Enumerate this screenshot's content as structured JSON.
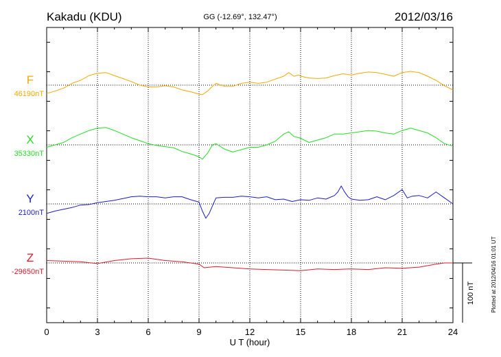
{
  "header": {
    "station": "Kakadu (KDU)",
    "coords": "GG (-12.69°, 132.47°)",
    "date": "2012/03/16"
  },
  "side_note": "Plotted at 2012/04/16 01:01  UT",
  "chart_data": {
    "type": "line",
    "xlabel": "U T (hour)",
    "xlim": [
      0,
      24
    ],
    "xticks": [
      "0",
      "3",
      "6",
      "9",
      "12",
      "15",
      "18",
      "21",
      "24"
    ],
    "scale_bar": {
      "label": "100 nT",
      "value_nT": 100
    },
    "series": [
      {
        "name": "F",
        "baseline_label": "46190nT",
        "baseline_nT": 46190,
        "color": "#f5a800",
        "x": [
          0,
          0.5,
          1,
          1.5,
          2,
          2.5,
          3,
          3.5,
          4,
          4.5,
          5,
          5.5,
          6,
          6.5,
          7,
          7.5,
          8,
          8.5,
          9,
          9.2,
          9.5,
          9.8,
          10,
          10.5,
          11,
          11.5,
          12,
          12.5,
          13,
          13.5,
          14,
          14.3,
          14.6,
          14.9,
          15,
          15.5,
          16,
          16.5,
          17,
          17.5,
          18,
          18.5,
          19,
          19.5,
          20,
          20.5,
          21,
          21.5,
          22,
          22.5,
          23,
          23.5,
          24
        ],
        "y": [
          -14,
          -10,
          -5,
          3,
          8,
          16,
          20,
          21,
          16,
          11,
          6,
          0,
          -3,
          -3,
          -1,
          -3,
          -8,
          -11,
          -15,
          -16,
          -10,
          -2,
          3,
          -2,
          -2,
          3,
          5,
          3,
          5,
          10,
          15,
          21,
          15,
          17,
          15,
          12,
          11,
          12,
          16,
          19,
          17,
          20,
          22,
          21,
          18,
          15,
          21,
          23,
          21,
          15,
          8,
          -1,
          -8
        ]
      },
      {
        "name": "X",
        "baseline_label": "35330nT",
        "baseline_nT": 35330,
        "color": "#22dd22",
        "x": [
          0,
          0.5,
          1,
          1.5,
          2,
          2.5,
          3,
          3.5,
          4,
          4.5,
          5,
          5.5,
          6,
          6.5,
          7,
          7.5,
          8,
          8.5,
          9,
          9.2,
          9.5,
          9.8,
          10,
          10.5,
          11,
          11.5,
          12,
          12.5,
          13,
          13.5,
          14,
          14.3,
          14.6,
          14.9,
          15,
          15.5,
          16,
          16.5,
          17,
          17.5,
          18,
          18.5,
          19,
          19.5,
          20,
          20.5,
          21,
          21.5,
          22,
          22.5,
          23,
          23.5,
          24
        ],
        "y": [
          -4,
          0,
          4,
          12,
          18,
          24,
          28,
          29,
          24,
          18,
          12,
          7,
          2,
          -1,
          -3,
          -5,
          -11,
          -15,
          -20,
          -24,
          -14,
          0,
          2,
          -7,
          -12,
          -8,
          -4,
          -4,
          0,
          6,
          18,
          22,
          14,
          12,
          11,
          4,
          8,
          12,
          18,
          18,
          20,
          22,
          24,
          23,
          20,
          18,
          24,
          28,
          24,
          20,
          12,
          2,
          -2
        ]
      },
      {
        "name": "Y",
        "baseline_label": "2100nT",
        "baseline_nT": 2100,
        "color": "#1a1acc",
        "x": [
          0,
          0.5,
          1,
          1.5,
          2,
          2.5,
          3,
          3.5,
          4,
          4.5,
          5,
          5.5,
          6,
          6.5,
          7,
          7.5,
          8,
          8.5,
          9,
          9.2,
          9.4,
          9.6,
          9.8,
          10,
          10.5,
          11,
          11.5,
          12,
          12.5,
          13,
          13.5,
          14,
          14.5,
          15,
          15.5,
          16,
          16.5,
          17,
          17.2,
          17.4,
          17.6,
          17.8,
          18,
          18.5,
          19,
          19.5,
          20,
          20.5,
          21,
          21.3,
          21.6,
          22,
          22.5,
          23,
          23.5,
          24
        ],
        "y": [
          -16,
          -12,
          -9,
          -6,
          -2,
          -1,
          2,
          4,
          6,
          9,
          12,
          13,
          12,
          12,
          10,
          12,
          12,
          7,
          3,
          -12,
          -24,
          -16,
          -3,
          10,
          11,
          11,
          13,
          12,
          10,
          12,
          7,
          8,
          4,
          7,
          6,
          10,
          8,
          14,
          20,
          30,
          20,
          12,
          8,
          6,
          7,
          12,
          7,
          14,
          24,
          10,
          13,
          14,
          10,
          20,
          10,
          0
        ]
      },
      {
        "name": "Z",
        "baseline_label": "-29650nT",
        "baseline_nT": -29650,
        "color": "#e0192a",
        "x": [
          0,
          1,
          2,
          3,
          4,
          5,
          6,
          7,
          8,
          9,
          9.3,
          10,
          11,
          12,
          13,
          14,
          15,
          16,
          17,
          18,
          19,
          20,
          21,
          22,
          23,
          23.5,
          24
        ],
        "y": [
          4,
          3,
          2,
          -1,
          4,
          7,
          8,
          4,
          2,
          -2,
          -8,
          -6,
          -8,
          -10,
          -11,
          -12,
          -13,
          -10,
          -11,
          -10,
          -11,
          -8,
          -9,
          -7,
          -2,
          0,
          0
        ]
      }
    ]
  }
}
